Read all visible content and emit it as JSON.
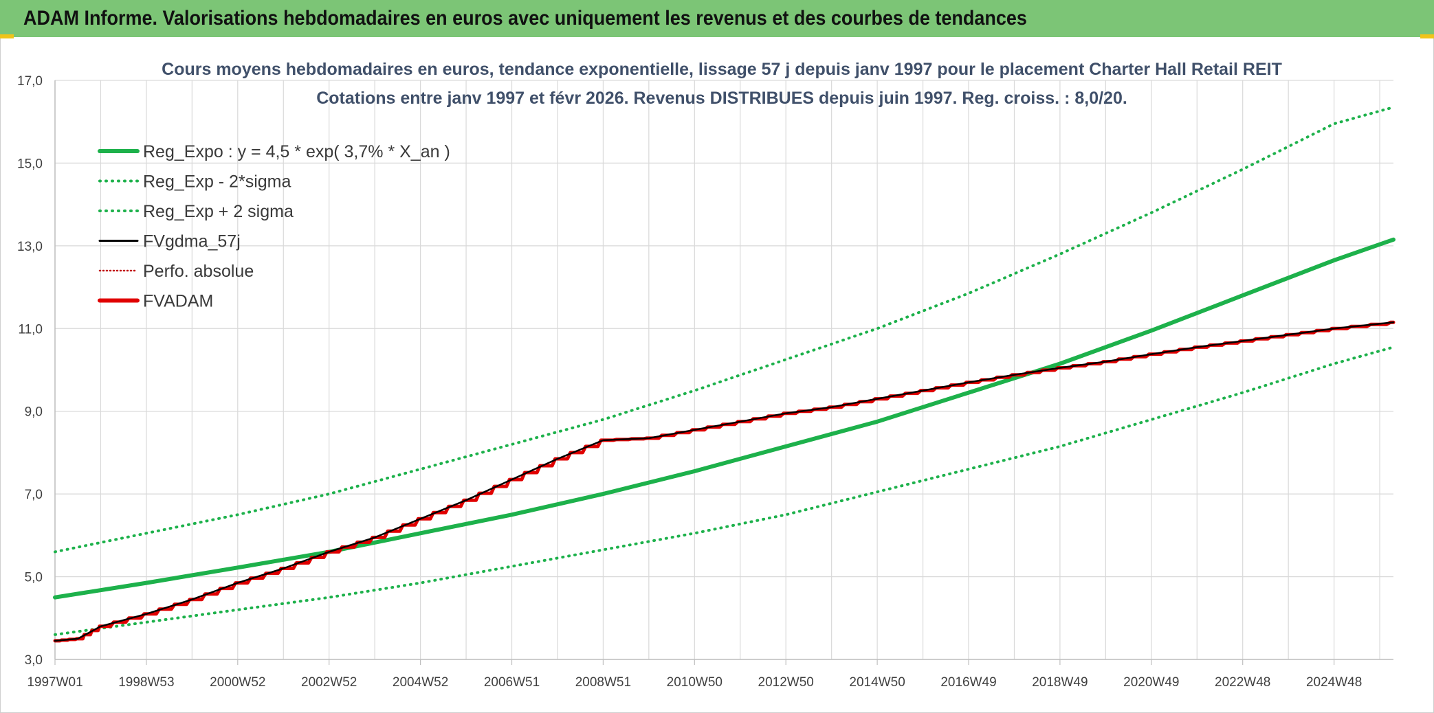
{
  "banner": {
    "title": "ADAM Informe. Valorisations hebdomadaires en euros avec uniquement les revenus et des courbes de tendances"
  },
  "colors": {
    "banner_bg": "#7cc576",
    "trend_green": "#1db14b",
    "fvadam_red": "#e00000",
    "fvgdma_black": "#000000",
    "perfo_red": "#c00000",
    "grid": "#d9d9d9",
    "title_text": "#40506a",
    "corner_accent": "#f0c419"
  },
  "chart_data": {
    "type": "line",
    "title": "Cours moyens hebdomadaires en euros, tendance exponentielle, lissage 57 j depuis janv 1997 pour le placement Charter Hall Retail REIT",
    "subtitle": "Cotations entre janv 1997 et févr 2026. Revenus DISTRIBUES depuis juin 1997. Reg. croiss. : 8,0/20.",
    "xlabel": "",
    "ylabel": "",
    "x_range_years": [
      1997.0,
      2026.3
    ],
    "ylim": [
      3.0,
      17.0
    ],
    "y_ticks": [
      "3,0",
      "5,0",
      "7,0",
      "9,0",
      "11,0",
      "13,0",
      "15,0",
      "17,0"
    ],
    "x_tick_labels": [
      "1997W01",
      "1998W53",
      "2000W52",
      "2002W52",
      "2004W52",
      "2006W51",
      "2008W51",
      "2010W50",
      "2012W50",
      "2014W50",
      "2016W49",
      "2018W49",
      "2020W49",
      "2022W48",
      "2024W48"
    ],
    "x_tick_years": [
      1997.0,
      1999.0,
      2001.0,
      2003.0,
      2005.0,
      2007.0,
      2009.0,
      2011.0,
      2013.0,
      2015.0,
      2017.0,
      2019.0,
      2021.0,
      2023.0,
      2025.0
    ],
    "series": [
      {
        "name": "Reg_Expo : y = 4,5 * exp( 3,7% *  X_an )",
        "style": "solid-thick",
        "color": "#1db14b",
        "x": [
          1997.0,
          1999.0,
          2001.0,
          2003.0,
          2005.0,
          2007.0,
          2009.0,
          2011.0,
          2013.0,
          2015.0,
          2017.0,
          2019.0,
          2021.0,
          2023.0,
          2025.0,
          2026.3
        ],
        "values": [
          4.5,
          4.85,
          5.22,
          5.6,
          6.05,
          6.5,
          7.0,
          7.55,
          8.15,
          8.75,
          9.45,
          10.15,
          10.95,
          11.8,
          12.65,
          13.15
        ]
      },
      {
        "name": "Reg_Exp - 2*sigma",
        "style": "dotted",
        "color": "#1db14b",
        "x": [
          1997.0,
          1999.0,
          2001.0,
          2003.0,
          2005.0,
          2007.0,
          2009.0,
          2011.0,
          2013.0,
          2015.0,
          2017.0,
          2019.0,
          2021.0,
          2023.0,
          2025.0,
          2026.3
        ],
        "values": [
          3.6,
          3.9,
          4.2,
          4.5,
          4.85,
          5.25,
          5.65,
          6.05,
          6.5,
          7.05,
          7.6,
          8.15,
          8.8,
          9.45,
          10.15,
          10.55
        ]
      },
      {
        "name": "Reg_Exp + 2 sigma",
        "style": "dotted",
        "color": "#1db14b",
        "x": [
          1997.0,
          1999.0,
          2001.0,
          2003.0,
          2005.0,
          2007.0,
          2009.0,
          2011.0,
          2013.0,
          2015.0,
          2017.0,
          2019.0,
          2021.0,
          2023.0,
          2025.0,
          2026.3
        ],
        "values": [
          5.6,
          6.05,
          6.5,
          7.0,
          7.6,
          8.2,
          8.8,
          9.5,
          10.25,
          11.0,
          11.85,
          12.8,
          13.8,
          14.85,
          15.95,
          16.35
        ]
      },
      {
        "name": "FVgdma_57j",
        "style": "solid-thin",
        "color": "#000000",
        "x": [
          1997.0,
          1997.5,
          1998.0,
          1999.0,
          2000.0,
          2001.0,
          2002.0,
          2003.0,
          2004.0,
          2005.0,
          2006.0,
          2007.0,
          2008.0,
          2009.0,
          2010.0,
          2011.0,
          2012.0,
          2013.0,
          2014.0,
          2015.0,
          2016.0,
          2017.0,
          2018.0,
          2019.0,
          2020.0,
          2021.0,
          2022.0,
          2023.0,
          2024.0,
          2025.0,
          2026.3
        ],
        "values": [
          3.45,
          3.5,
          3.8,
          4.1,
          4.45,
          4.85,
          5.2,
          5.6,
          5.95,
          6.4,
          6.85,
          7.35,
          7.85,
          8.3,
          8.35,
          8.55,
          8.75,
          8.95,
          9.1,
          9.3,
          9.5,
          9.7,
          9.88,
          10.05,
          10.2,
          10.38,
          10.55,
          10.7,
          10.85,
          11.0,
          11.15
        ]
      },
      {
        "name": "Perfo. absolue",
        "style": "dotted-thin",
        "color": "#c00000",
        "x": [],
        "values": []
      },
      {
        "name": "FVADAM",
        "style": "stepped-thick",
        "color": "#e00000",
        "x": [
          1997.0,
          1997.5,
          1998.0,
          1999.0,
          2000.0,
          2001.0,
          2002.0,
          2003.0,
          2004.0,
          2005.0,
          2006.0,
          2007.0,
          2008.0,
          2009.0,
          2010.0,
          2011.0,
          2012.0,
          2013.0,
          2014.0,
          2015.0,
          2016.0,
          2017.0,
          2018.0,
          2019.0,
          2020.0,
          2021.0,
          2022.0,
          2023.0,
          2024.0,
          2025.0,
          2026.3
        ],
        "values": [
          3.45,
          3.5,
          3.8,
          4.1,
          4.45,
          4.85,
          5.2,
          5.6,
          5.95,
          6.4,
          6.85,
          7.35,
          7.85,
          8.3,
          8.35,
          8.55,
          8.75,
          8.95,
          9.1,
          9.3,
          9.5,
          9.7,
          9.88,
          10.05,
          10.2,
          10.38,
          10.55,
          10.7,
          10.85,
          11.0,
          11.15
        ]
      }
    ],
    "legend_position": "top-left",
    "grid": true
  }
}
